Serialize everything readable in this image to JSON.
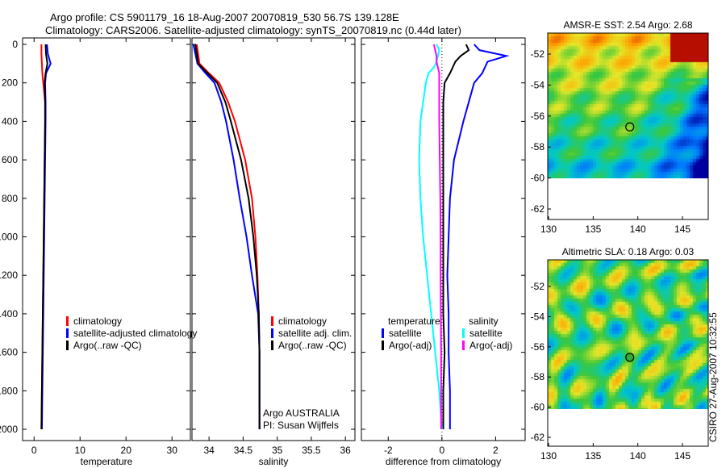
{
  "title": {
    "line1": "Argo profile: CS 5901179_16 18-Aug-2007 20070819_530 56.7S 139.128E",
    "line2": "Climatology: CARS2006. Satellite-adjusted climatology: synTS_20070819.nc (0.44d later)"
  },
  "side_label": "CSIRO 27-Aug-2007 10:32:55",
  "colors": {
    "climatology": "#ff0000",
    "satellite": "#0000ff",
    "argo": "#000000",
    "sal_sat": "#00ffff",
    "sal_argo": "#ff00ff"
  },
  "chart_data": [
    {
      "type": "line",
      "xlabel": "temperature",
      "ylim": [
        2050,
        -30
      ],
      "xlim": [
        -2.5,
        34
      ],
      "xticks": [
        0,
        10,
        20,
        30
      ],
      "yticks": [
        0,
        200,
        400,
        600,
        800,
        1000,
        1200,
        1400,
        1600,
        1800,
        2000
      ],
      "depth": [
        0,
        50,
        100,
        150,
        200,
        300,
        400,
        600,
        800,
        1000,
        1200,
        1400,
        1600,
        1800,
        2000
      ],
      "series": [
        {
          "name": "climatology",
          "color": "#ff0000",
          "values": [
            1.6,
            1.6,
            1.7,
            1.8,
            2.0,
            2.4,
            2.4,
            2.3,
            2.2,
            2.1,
            2.0,
            1.9,
            1.8,
            1.7,
            1.6
          ]
        },
        {
          "name": "satellite-adjusted climatology",
          "color": "#0000ff",
          "values": [
            2.8,
            3.0,
            3.6,
            2.6,
            2.4,
            2.5,
            2.5,
            2.4,
            2.3,
            2.2,
            2.1,
            2.0,
            1.9,
            1.8,
            1.7
          ]
        },
        {
          "name": "Argo(..raw -QC)",
          "color": "#000000",
          "values": [
            2.5,
            2.6,
            2.9,
            2.5,
            2.3,
            2.4,
            2.4,
            2.3,
            2.2,
            2.1,
            2.0,
            1.9,
            1.8,
            1.7,
            1.6
          ]
        }
      ]
    },
    {
      "type": "line",
      "xlabel": "salinity",
      "ylim": [
        2050,
        -30
      ],
      "xlim": [
        33.75,
        36.14
      ],
      "xticks": [
        34,
        34.5,
        35,
        35.5,
        36
      ],
      "depth": [
        0,
        100,
        150,
        200,
        300,
        400,
        600,
        800,
        1000,
        1200,
        1400,
        1600,
        1800,
        2000
      ],
      "series": [
        {
          "name": "climatology",
          "color": "#ff0000",
          "values": [
            33.82,
            33.86,
            34.0,
            34.15,
            34.28,
            34.38,
            34.53,
            34.63,
            34.68,
            34.71,
            34.73,
            34.74,
            34.74,
            34.74
          ]
        },
        {
          "name": "satellite adj. clim.",
          "color": "#0000ff",
          "values": [
            33.77,
            33.83,
            33.95,
            34.08,
            34.18,
            34.25,
            34.36,
            34.45,
            34.55,
            34.63,
            34.72,
            34.74,
            34.74,
            34.74
          ]
        },
        {
          "name": "Argo(..raw -QC)",
          "color": "#000000",
          "values": [
            33.8,
            33.84,
            33.98,
            34.12,
            34.24,
            34.32,
            34.47,
            34.58,
            34.65,
            34.7,
            34.73,
            34.74,
            34.74,
            34.74
          ]
        }
      ],
      "annotation": [
        "Argo AUSTRALIA",
        "PI: Susan Wijffels"
      ]
    },
    {
      "type": "line",
      "xlabel": "difference from climatology",
      "ylim": [
        2050,
        -30
      ],
      "xlim": [
        -3,
        3.1
      ],
      "xticks": [
        -2,
        0,
        2
      ],
      "depth": [
        0,
        30,
        60,
        90,
        120,
        150,
        200,
        300,
        400,
        600,
        800,
        1000,
        1200,
        1400,
        1600,
        1800,
        2000
      ],
      "series": [
        {
          "name": "temperature satellite",
          "color": "#0000ff",
          "values": [
            1.2,
            1.4,
            2.4,
            1.7,
            1.6,
            1.5,
            1.2,
            1.0,
            0.8,
            0.45,
            0.3,
            0.25,
            0.2,
            0.25,
            0.25,
            0.3,
            0.3
          ]
        },
        {
          "name": "temperature Argo(-adj)",
          "color": "#000000",
          "values": [
            0.9,
            1.0,
            0.7,
            0.5,
            0.4,
            0.3,
            0.1,
            0.05,
            0.05,
            0.05,
            0.05,
            0.05,
            0.05,
            0.05,
            0.1,
            0.05,
            0.05
          ]
        },
        {
          "name": "salinity satellite",
          "color": "#00ffff",
          "values": [
            -0.2,
            -0.1,
            -0.15,
            -0.2,
            -0.3,
            -0.5,
            -0.6,
            -0.7,
            -0.8,
            -0.85,
            -0.8,
            -0.7,
            -0.55,
            -0.4,
            -0.25,
            -0.1,
            0
          ]
        },
        {
          "name": "salinity Argo(-adj)",
          "color": "#ff00ff",
          "values": [
            -0.3,
            -0.25,
            -0.2,
            -0.2,
            -0.15,
            -0.1,
            -0.1,
            -0.1,
            -0.1,
            -0.08,
            -0.06,
            -0.05,
            -0.05,
            -0.04,
            -0.03,
            -0.03,
            -0.03
          ]
        }
      ],
      "legend_headers": [
        "temperature",
        "salinity"
      ]
    },
    {
      "type": "heatmap",
      "title": "AMSR-E SST: 2.54 Argo: 2.68",
      "xticks": [
        130,
        135,
        140,
        145
      ],
      "yticks": [
        -52,
        -54,
        -56,
        -58,
        -60,
        -62
      ],
      "xlim": [
        129.9,
        147.9
      ],
      "ylim": [
        -62.7,
        -50.6
      ],
      "data_lat_min": -60,
      "marker": [
        139.1,
        -56.7
      ]
    },
    {
      "type": "heatmap",
      "title": "Altimetric SLA: 0.18 Argo: 0.03",
      "xticks": [
        130,
        135,
        140,
        145
      ],
      "yticks": [
        -52,
        -54,
        -56,
        -58,
        -60,
        -62
      ],
      "xlim": [
        129.9,
        147.9
      ],
      "ylim": [
        -62.7,
        -50.6
      ],
      "data_lat_min": -60,
      "marker": [
        139.1,
        -56.7
      ]
    }
  ]
}
